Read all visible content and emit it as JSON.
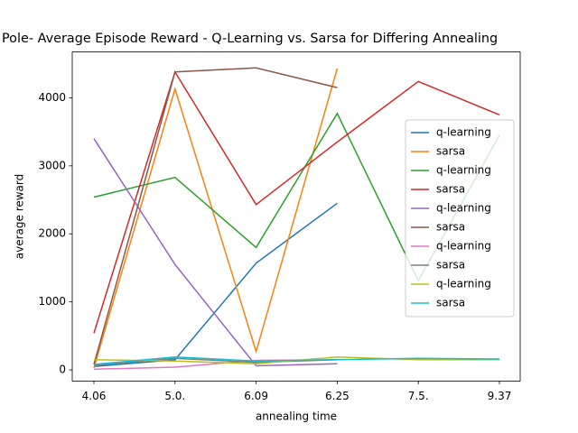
{
  "chart_data": {
    "type": "line",
    "title": "Pole- Average Episode Reward - Q-Learning vs. Sarsa for Differing Annealing",
    "xlabel": "annealing time",
    "ylabel": "average reward",
    "categories": [
      "4.06",
      "5.0.",
      "6.09",
      "6.25",
      "7.5.",
      "9.37"
    ],
    "ylim": [
      -164,
      4674
    ],
    "yticks": [
      0,
      1000,
      2000,
      3000,
      4000
    ],
    "legend": "right",
    "series": [
      {
        "name": "q-learning",
        "color": "#1f77b4",
        "values": [
          50,
          150,
          1570,
          2450,
          null,
          null
        ]
      },
      {
        "name": "sarsa",
        "color": "#ff7f0e",
        "values": [
          30,
          4130,
          270,
          4430,
          null,
          null
        ]
      },
      {
        "name": "q-learning",
        "color": "#2ca02c",
        "values": [
          2540,
          2830,
          1800,
          3770,
          1310,
          3450
        ]
      },
      {
        "name": "sarsa",
        "color": "#d62728",
        "values": [
          540,
          4380,
          2430,
          3350,
          4240,
          3750
        ]
      },
      {
        "name": "q-learning",
        "color": "#9467bd",
        "values": [
          3400,
          1550,
          60,
          90,
          null,
          null
        ]
      },
      {
        "name": "sarsa",
        "color": "#8c564b",
        "values": [
          80,
          4380,
          4440,
          4150,
          null,
          null
        ]
      },
      {
        "name": "q-learning",
        "color": "#e377c2",
        "values": [
          10,
          40,
          140,
          150,
          null,
          null
        ]
      },
      {
        "name": "sarsa",
        "color": "#7f7f7f",
        "values": [
          70,
          170,
          110,
          150,
          null,
          null
        ]
      },
      {
        "name": "q-learning",
        "color": "#bcbd22",
        "values": [
          150,
          130,
          90,
          190,
          150,
          150
        ]
      },
      {
        "name": "sarsa",
        "color": "#17becf",
        "values": [
          80,
          190,
          130,
          150,
          170,
          160
        ]
      }
    ]
  }
}
